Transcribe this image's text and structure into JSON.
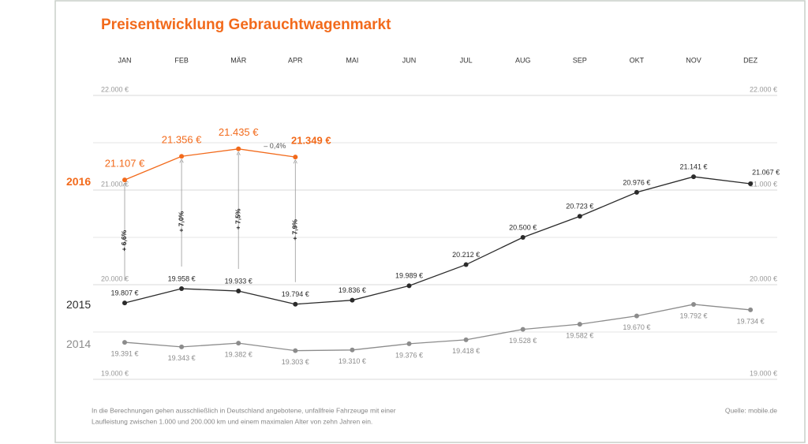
{
  "chart_data": {
    "type": "line",
    "title": "Preisentwicklung Gebrauchtwagenmarkt",
    "categories": [
      "JAN",
      "FEB",
      "MÄR",
      "APR",
      "MAI",
      "JUN",
      "JUL",
      "AUG",
      "SEP",
      "OKT",
      "NOV",
      "DEZ"
    ],
    "series": [
      {
        "name": "2016",
        "color": "#f26a1b",
        "values": [
          21107,
          21356,
          21435,
          21349,
          null,
          null,
          null,
          null,
          null,
          null,
          null,
          null
        ],
        "value_labels": [
          "21.107 €",
          "21.356 €",
          "21.435 €",
          "21.349 €",
          null,
          null,
          null,
          null,
          null,
          null,
          null,
          null
        ]
      },
      {
        "name": "2015",
        "color": "#2b2b2b",
        "values": [
          19807,
          19958,
          19933,
          19794,
          19836,
          19989,
          20212,
          20500,
          20723,
          20976,
          21141,
          21067
        ],
        "value_labels": [
          "19.807 €",
          "19.958 €",
          "19.933 €",
          "19.794 €",
          "19.836 €",
          "19.989 €",
          "20.212 €",
          "20.500 €",
          "20.723 €",
          "20.976 €",
          "21.141 €",
          "21.067 €"
        ]
      },
      {
        "name": "2014",
        "color": "#8c8c8c",
        "values": [
          19391,
          19343,
          19382,
          19303,
          19310,
          19376,
          19418,
          19528,
          19582,
          19670,
          19792,
          19734
        ],
        "value_labels": [
          "19.391 €",
          "19.343 €",
          "19.382 €",
          "19.303 €",
          "19.310 €",
          "19.376 €",
          "19.418 €",
          "19.528 €",
          "19.582 €",
          "19.670 €",
          "19.792 €",
          "19.734 €"
        ]
      }
    ],
    "growth_labels": [
      "+ 6,6%",
      "+ 7,0%",
      "+ 7,5%",
      "+ 7,9%"
    ],
    "change_label": "– 0,4%",
    "ylim": [
      19000,
      22000
    ],
    "yticks": [
      {
        "value": 19000,
        "label": "19.000 €"
      },
      {
        "value": 20000,
        "label": "20.000 €"
      },
      {
        "value": 21000,
        "label": "21.000 €"
      },
      {
        "value": 22000,
        "label": "22.000 €"
      }
    ],
    "yminor": [
      19500,
      20500,
      21500
    ],
    "grid": true,
    "footnote": [
      "In die Berechnungen gehen ausschließlich in Deutschland angebotene, unfallfreie Fahrzeuge mit einer",
      "Laufleistung zwischen 1.000 und 200.000 km und einem maximalen Alter von zehn Jahren ein."
    ],
    "source": "Quelle: mobile.de"
  }
}
